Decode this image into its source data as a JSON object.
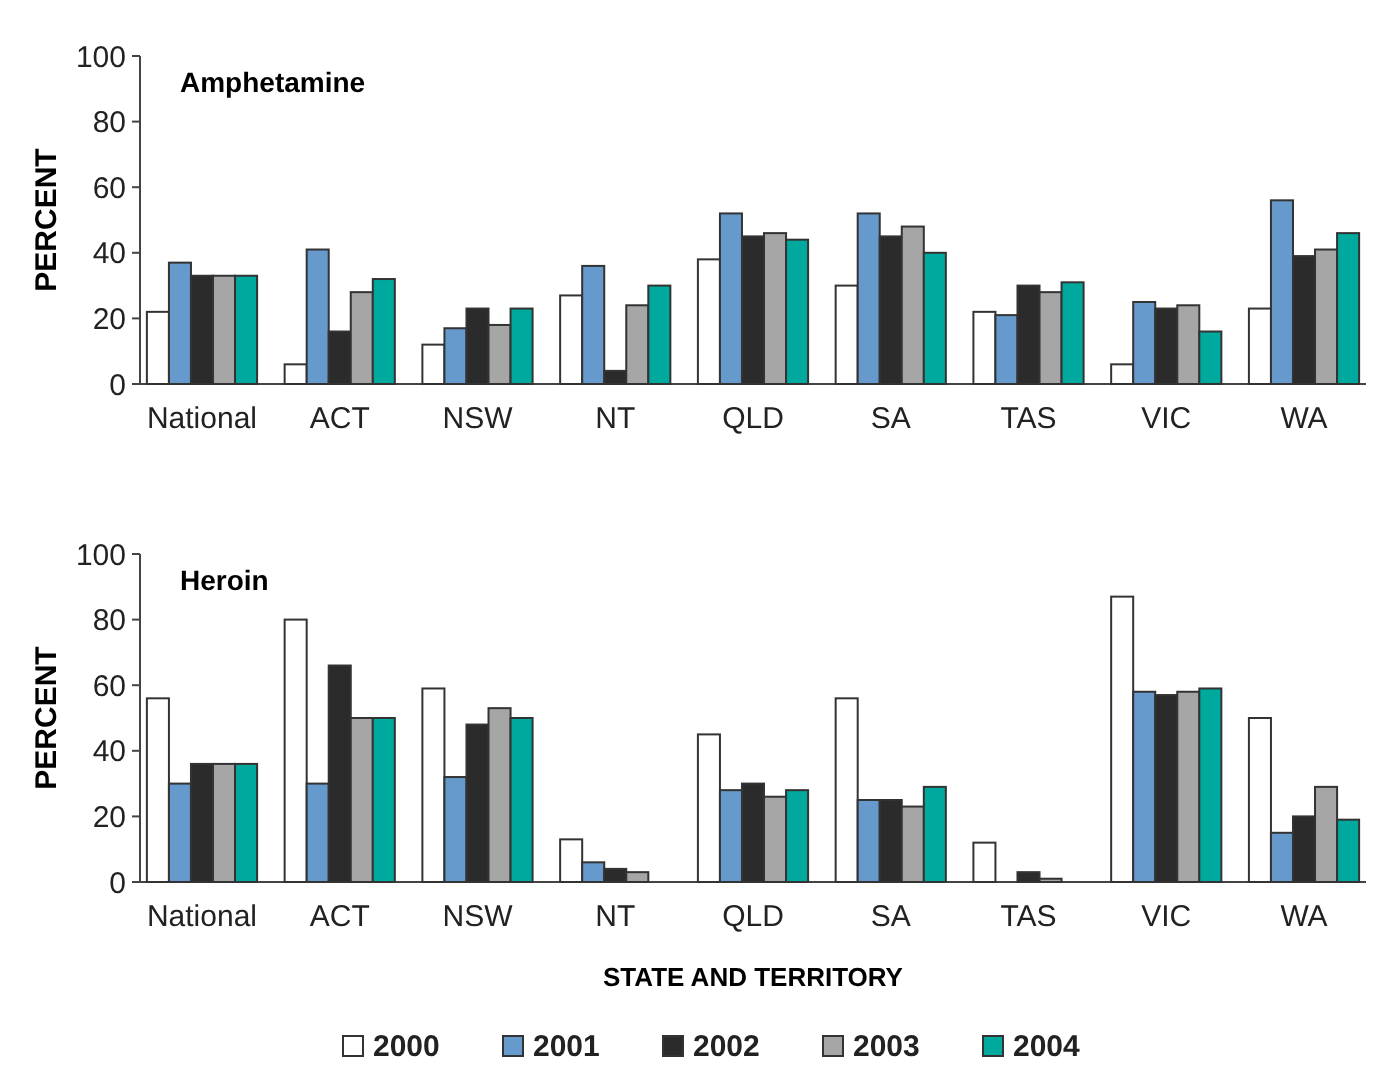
{
  "chart_data": [
    {
      "type": "bar",
      "title": "Amphetamine",
      "ylabel": "PERCENT",
      "categories": [
        "National",
        "ACT",
        "NSW",
        "NT",
        "QLD",
        "SA",
        "TAS",
        "VIC",
        "WA"
      ],
      "ylim": [
        0,
        100
      ],
      "yticks": [
        0,
        20,
        40,
        60,
        80,
        100
      ],
      "legend": false,
      "series": [
        {
          "color": "#ffffff",
          "values": [
            22,
            6,
            12,
            27,
            38,
            30,
            22,
            6,
            23
          ]
        },
        {
          "color": "#6699cc",
          "values": [
            37,
            41,
            17,
            36,
            52,
            52,
            21,
            25,
            56
          ]
        },
        {
          "color": "#2b2b2b",
          "values": [
            33,
            16,
            23,
            4,
            45,
            45,
            30,
            23,
            39
          ]
        },
        {
          "color": "#a6a6a6",
          "values": [
            33,
            28,
            18,
            24,
            46,
            48,
            28,
            24,
            41
          ]
        },
        {
          "color": "#00a99d",
          "values": [
            33,
            32,
            23,
            30,
            44,
            40,
            31,
            16,
            46
          ]
        }
      ]
    },
    {
      "type": "bar",
      "title": "Heroin",
      "ylabel": "PERCENT",
      "xlabel": "STATE AND TERRITORY",
      "categories": [
        "National",
        "ACT",
        "NSW",
        "NT",
        "QLD",
        "SA",
        "TAS",
        "VIC",
        "WA"
      ],
      "ylim": [
        0,
        100
      ],
      "yticks": [
        0,
        20,
        40,
        60,
        80,
        100
      ],
      "legend": "bottom",
      "series": [
        {
          "name": "2000",
          "color": "#ffffff",
          "values": [
            56,
            80,
            59,
            13,
            45,
            56,
            12,
            87,
            50
          ]
        },
        {
          "name": "2001",
          "color": "#6699cc",
          "values": [
            30,
            30,
            32,
            6,
            28,
            25,
            null,
            58,
            15
          ]
        },
        {
          "name": "2002",
          "color": "#2b2b2b",
          "values": [
            36,
            66,
            48,
            4,
            30,
            25,
            3,
            57,
            20
          ]
        },
        {
          "name": "2003",
          "color": "#a6a6a6",
          "values": [
            36,
            50,
            53,
            3,
            26,
            23,
            1,
            58,
            29
          ]
        },
        {
          "name": "2004",
          "color": "#00a99d",
          "values": [
            36,
            50,
            50,
            null,
            28,
            29,
            null,
            59,
            19
          ]
        }
      ]
    }
  ]
}
